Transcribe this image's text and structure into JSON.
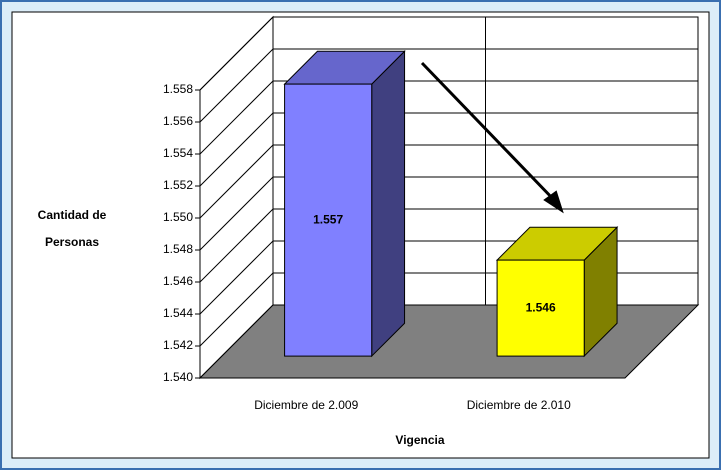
{
  "chart_data": {
    "type": "bar3d",
    "categories": [
      "Diciembre de 2.009",
      "Diciembre de 2.010"
    ],
    "values": [
      1557,
      1546
    ],
    "value_labels": [
      "1.557",
      "1.546"
    ],
    "colors": [
      "#8080ff",
      "#ffff00"
    ],
    "xlabel": "Vigencia",
    "ylabel": "Cantidad de Personas",
    "ylim": [
      1540,
      1558
    ],
    "yticks": [
      {
        "value": 1540,
        "label": "1.540"
      },
      {
        "value": 1542,
        "label": "1.542"
      },
      {
        "value": 1544,
        "label": "1.544"
      },
      {
        "value": 1546,
        "label": "1.546"
      },
      {
        "value": 1548,
        "label": "1.548"
      },
      {
        "value": 1550,
        "label": "1.550"
      },
      {
        "value": 1552,
        "label": "1.552"
      },
      {
        "value": 1554,
        "label": "1.554"
      },
      {
        "value": 1556,
        "label": "1.556"
      },
      {
        "value": 1558,
        "label": "1.558"
      }
    ],
    "grid": true
  }
}
